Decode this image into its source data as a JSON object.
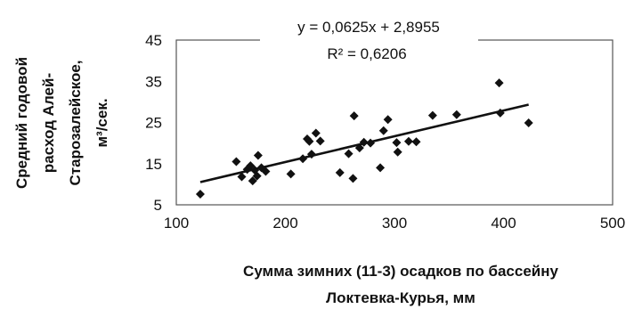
{
  "chart_data": {
    "type": "scatter",
    "title": "",
    "xlabel_lines": [
      "Сумма зимних (11-3) осадков по бассейну",
      "Локтевка-Курья, мм"
    ],
    "ylabel_lines": [
      "Средний годовой",
      "расход Алей-",
      "Старозалейское,",
      "м³/сек."
    ],
    "xlim": [
      100,
      500
    ],
    "ylim": [
      5,
      45
    ],
    "xticks": [
      100,
      200,
      300,
      400,
      500
    ],
    "yticks": [
      5,
      15,
      25,
      35,
      45
    ],
    "grid": false,
    "legend": false,
    "series": [
      {
        "points": [
          {
            "x": 122,
            "y": 7.6
          },
          {
            "x": 155,
            "y": 15.5
          },
          {
            "x": 160,
            "y": 11.8
          },
          {
            "x": 165,
            "y": 13.6
          },
          {
            "x": 168,
            "y": 14.5
          },
          {
            "x": 170,
            "y": 10.8
          },
          {
            "x": 172,
            "y": 13.4
          },
          {
            "x": 174,
            "y": 12.0
          },
          {
            "x": 175,
            "y": 17.0
          },
          {
            "x": 178,
            "y": 14.0
          },
          {
            "x": 182,
            "y": 13.1
          },
          {
            "x": 205,
            "y": 12.5
          },
          {
            "x": 216,
            "y": 16.2
          },
          {
            "x": 220,
            "y": 21.0
          },
          {
            "x": 222,
            "y": 20.4
          },
          {
            "x": 224,
            "y": 17.3
          },
          {
            "x": 228,
            "y": 22.4
          },
          {
            "x": 232,
            "y": 20.5
          },
          {
            "x": 250,
            "y": 12.8
          },
          {
            "x": 258,
            "y": 17.4
          },
          {
            "x": 262,
            "y": 11.4
          },
          {
            "x": 263,
            "y": 26.6
          },
          {
            "x": 268,
            "y": 18.8
          },
          {
            "x": 272,
            "y": 20.2
          },
          {
            "x": 278,
            "y": 20.0
          },
          {
            "x": 287,
            "y": 14.0
          },
          {
            "x": 290,
            "y": 23.0
          },
          {
            "x": 294,
            "y": 25.7
          },
          {
            "x": 302,
            "y": 20.1
          },
          {
            "x": 303,
            "y": 17.8
          },
          {
            "x": 313,
            "y": 20.4
          },
          {
            "x": 320,
            "y": 20.3
          },
          {
            "x": 335,
            "y": 26.7
          },
          {
            "x": 357,
            "y": 26.9
          },
          {
            "x": 396,
            "y": 34.6
          },
          {
            "x": 397,
            "y": 27.3
          },
          {
            "x": 423,
            "y": 24.9
          }
        ],
        "marker": "diamond",
        "color": "#111111"
      }
    ],
    "trendline": {
      "type": "linear",
      "slope": 0.0625,
      "intercept": 2.8955,
      "x_range": [
        122,
        423
      ],
      "color": "#111111"
    },
    "annotations": {
      "equation": "y = 0,0625x + 2,8955",
      "r_squared": "R² = 0,6206"
    }
  }
}
